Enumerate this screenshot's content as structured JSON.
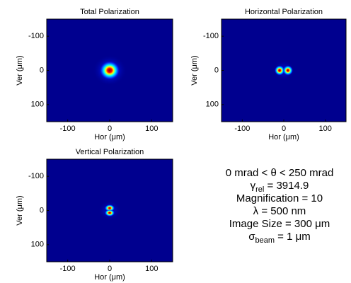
{
  "chart_data": [
    {
      "type": "image",
      "title": "Total Polarization",
      "xlabel": "Hor (μm)",
      "ylabel": "Ver (μm)",
      "xlim": [
        -150,
        150
      ],
      "ylim": [
        150,
        -150
      ],
      "xticks": [
        -100,
        0,
        100
      ],
      "yticks": [
        -100,
        0,
        100
      ],
      "background": "#00008f",
      "spots": {
        "x": [
          0
        ],
        "y": [
          0
        ]
      }
    },
    {
      "type": "image",
      "title": "Horizontal Polarization",
      "xlabel": "Hor (μm)",
      "ylabel": "Ver (μm)",
      "xlim": [
        -150,
        150
      ],
      "ylim": [
        150,
        -150
      ],
      "xticks": [
        -100,
        0,
        100
      ],
      "yticks": [
        -100,
        0,
        100
      ],
      "background": "#00008f",
      "spots": {
        "x": [
          -10,
          10
        ],
        "y": [
          0,
          0
        ]
      }
    },
    {
      "type": "image",
      "title": "Vertical Polarization",
      "xlabel": "Hor (μm)",
      "ylabel": "Ver (μm)",
      "xlim": [
        -150,
        150
      ],
      "ylim": [
        150,
        -150
      ],
      "xticks": [
        -100,
        0,
        100
      ],
      "yticks": [
        -100,
        0,
        100
      ],
      "background": "#00008f",
      "spots": {
        "x": [
          0,
          0
        ],
        "y": [
          -7,
          7
        ]
      }
    }
  ],
  "annotation": [
    {
      "text": "0 mrad < θ < 250 mrad"
    },
    {
      "text": "γ",
      "sub": "rel",
      "after": " = 3914.9"
    },
    {
      "text": "Magnification = 10"
    },
    {
      "text": "λ = 500 nm"
    },
    {
      "text": "Image Size = 300 μm"
    },
    {
      "text": "σ",
      "sub": "beam",
      "after": " = 1 μm"
    }
  ]
}
